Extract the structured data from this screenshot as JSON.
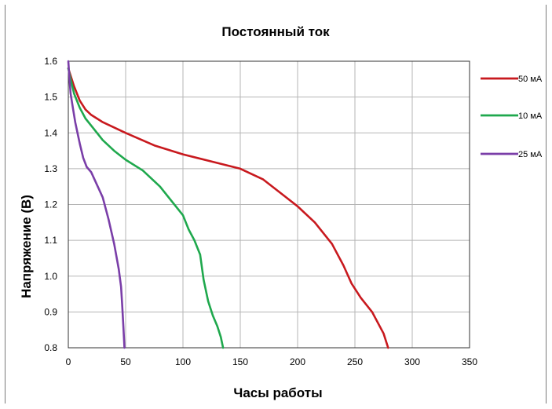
{
  "chart_data": {
    "type": "line",
    "title": "Постоянный ток",
    "xlabel": "Часы работы",
    "ylabel": "Напряжение (В)",
    "xlim": [
      0,
      350
    ],
    "ylim": [
      0.8,
      1.6
    ],
    "x_ticks": [
      "0",
      "50",
      "100",
      "150",
      "200",
      "250",
      "300",
      "350"
    ],
    "y_ticks": [
      "0.8",
      "0.9",
      "1.0",
      "1.1",
      "1.2",
      "1.3",
      "1.4",
      "1.5",
      "1.6"
    ],
    "grid": true,
    "legend_position": "right",
    "series": [
      {
        "name": "50 мА",
        "color": "#c8191e",
        "x": [
          0,
          2,
          5,
          10,
          15,
          20,
          30,
          40,
          50,
          75,
          100,
          125,
          150,
          170,
          190,
          200,
          215,
          230,
          240,
          247,
          255,
          265,
          275,
          279
        ],
        "y": [
          1.58,
          1.56,
          1.53,
          1.49,
          1.465,
          1.45,
          1.43,
          1.415,
          1.4,
          1.365,
          1.34,
          1.32,
          1.3,
          1.27,
          1.22,
          1.195,
          1.15,
          1.09,
          1.03,
          0.98,
          0.94,
          0.9,
          0.84,
          0.8
        ]
      },
      {
        "name": "10 мА",
        "color": "#1fa84d",
        "x": [
          0,
          2,
          5,
          10,
          15,
          20,
          30,
          40,
          50,
          65,
          80,
          95,
          100,
          105,
          110,
          115,
          118,
          122,
          126,
          130,
          133,
          135
        ],
        "y": [
          1.58,
          1.55,
          1.51,
          1.47,
          1.44,
          1.42,
          1.38,
          1.35,
          1.325,
          1.295,
          1.25,
          1.19,
          1.17,
          1.13,
          1.1,
          1.06,
          0.99,
          0.93,
          0.89,
          0.86,
          0.83,
          0.8
        ]
      },
      {
        "name": "25 мА",
        "color": "#7a3ea8",
        "x": [
          0,
          1,
          2,
          4,
          6,
          8,
          10,
          13,
          16,
          20,
          25,
          30,
          35,
          40,
          44,
          46,
          47,
          48,
          49
        ],
        "y": [
          1.6,
          1.55,
          1.51,
          1.47,
          1.43,
          1.4,
          1.37,
          1.33,
          1.305,
          1.29,
          1.255,
          1.22,
          1.16,
          1.09,
          1.02,
          0.97,
          0.92,
          0.86,
          0.8
        ]
      }
    ]
  }
}
